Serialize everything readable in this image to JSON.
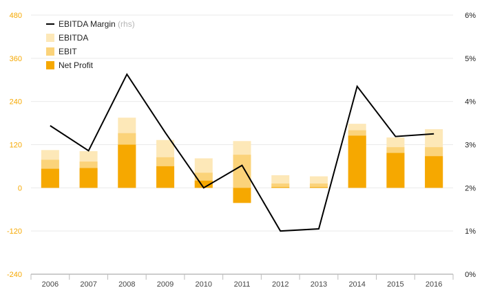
{
  "chart_data": {
    "type": "bar",
    "categories": [
      "2006",
      "2007",
      "2008",
      "2009",
      "2010",
      "2011",
      "2012",
      "2013",
      "2014",
      "2015",
      "2016"
    ],
    "series": [
      {
        "name": "EBITDA",
        "kind": "bar",
        "axis": "left",
        "color": "#fde8b8",
        "values": [
          105,
          102,
          195,
          133,
          82,
          130,
          35,
          32,
          178,
          140,
          163
        ]
      },
      {
        "name": "EBIT",
        "kind": "bar",
        "axis": "left",
        "color": "#fbd37a",
        "values": [
          78,
          73,
          152,
          85,
          42,
          92,
          12,
          12,
          160,
          113,
          113
        ]
      },
      {
        "name": "Net Profit",
        "kind": "bar",
        "axis": "left",
        "color": "#f6a800",
        "values": [
          53,
          55,
          120,
          60,
          20,
          -42,
          2,
          2,
          145,
          97,
          88
        ]
      },
      {
        "name": "EBITDA Margin",
        "name_suffix": "(rhs)",
        "kind": "line",
        "axis": "right",
        "color": "#000000",
        "values": [
          3.44,
          2.86,
          4.63,
          3.28,
          2.0,
          2.52,
          1.0,
          1.05,
          4.35,
          3.19,
          3.25
        ]
      }
    ],
    "y_left": {
      "ticks": [
        "480",
        "360",
        "240",
        "120",
        "0",
        "-120",
        "-240"
      ],
      "min": -240,
      "max": 480,
      "tick_color": "#f6a800"
    },
    "y_right": {
      "ticks": [
        "6%",
        "5%",
        "4%",
        "3%",
        "2%",
        "1%",
        "0%"
      ],
      "min": 0,
      "max": 6
    },
    "legend_position": "top-left",
    "grid": true
  }
}
